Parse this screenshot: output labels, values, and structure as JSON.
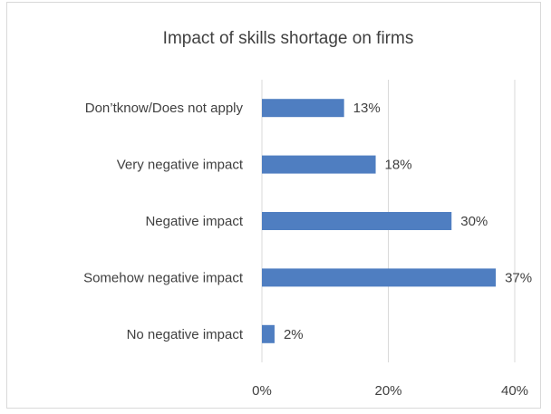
{
  "chart_data": {
    "type": "bar",
    "orientation": "horizontal",
    "title": "Impact of skills shortage on firms",
    "categories": [
      "Don’tknow/Does not apply",
      "Very negative impact",
      "Negative impact",
      "Somehow negative impact",
      "No negative impact"
    ],
    "values": [
      13,
      18,
      30,
      37,
      2
    ],
    "data_labels": [
      "13%",
      "18%",
      "30%",
      "37%",
      "2%"
    ],
    "xlim": [
      0,
      40
    ],
    "xticks": [
      "0%",
      "20%",
      "40%"
    ],
    "xlabel": "",
    "ylabel": "",
    "grid": "vertical",
    "legend": "none",
    "bar_color": "#4f7ec1",
    "grid_color": "#d9d9d9"
  }
}
